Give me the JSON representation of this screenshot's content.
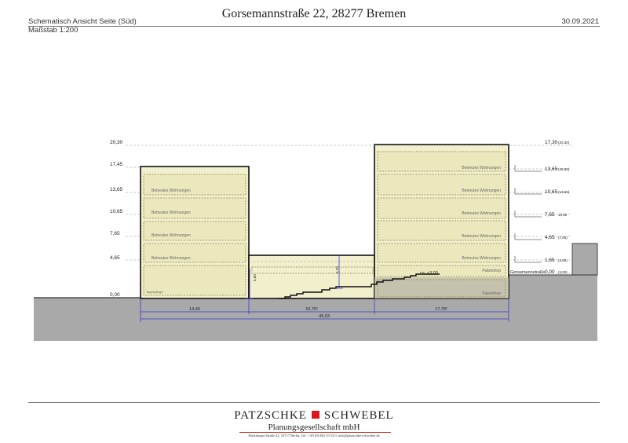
{
  "header": {
    "title": "Gorsemannstraße 22, 28277 Bremen",
    "view": "Schematisch Ansicht Seite (Süd)",
    "scale": "Maßstab 1:200",
    "date": "30.09.2021"
  },
  "drawing": {
    "colors": {
      "ground": "#a9a9a9",
      "building_fill": "#f1efcc",
      "floor_fill": "#ebe8bd",
      "dash": "#8e8350",
      "dimension": "#3a3ad0",
      "outline": "#111111"
    },
    "left_levels": [
      "20,30",
      "17,45",
      "13,65",
      "10,65",
      "7,65",
      "4,65",
      "0,00"
    ],
    "right_levels": [
      {
        "value": "17,30",
        "sub": "(20,30)"
      },
      {
        "value": "13,65",
        "sub": "(16,65)"
      },
      {
        "value": "10,65",
        "sub": "(13,65)"
      },
      {
        "value": "7,65",
        "sub": "10,65"
      },
      {
        "value": "4,65",
        "sub": "(7,65)"
      },
      {
        "value": "1,65",
        "sub": "(4,65)"
      },
      {
        "value": "0,00",
        "sub": "(3,00)"
      }
    ],
    "left_floors": [
      "Betreutes Wohnungen",
      "Betreutes Wohnungen",
      "Betreutes Wohnungen",
      "Betreutes Wohnungen",
      "Tagespflege"
    ],
    "right_floors": [
      "Betreutes Wohnungen",
      "Betreutes Wohnungen",
      "Betreutes Wohnungen",
      "Betreutes Wohnungen",
      "Betreutes Wohnungen",
      "Paketshop",
      "Paketshop"
    ],
    "street_label": "Gorsemannstraße",
    "mid_level": "ca. +3,00",
    "heights": [
      "5,60",
      "5,70"
    ],
    "dims": [
      "14,49",
      "16,75²",
      "17,78²"
    ],
    "total": "49,03"
  },
  "footer": {
    "company_left": "PATZSCHKE",
    "company_right": "SCHWEBEL",
    "subtitle": "Planungsgesellschaft mbH",
    "address": "Pfalzburger Straße 42, 10717 Berlin, Tel.: +49 (0) 863 19 52 0, info@patzschke-schwebel.de"
  }
}
